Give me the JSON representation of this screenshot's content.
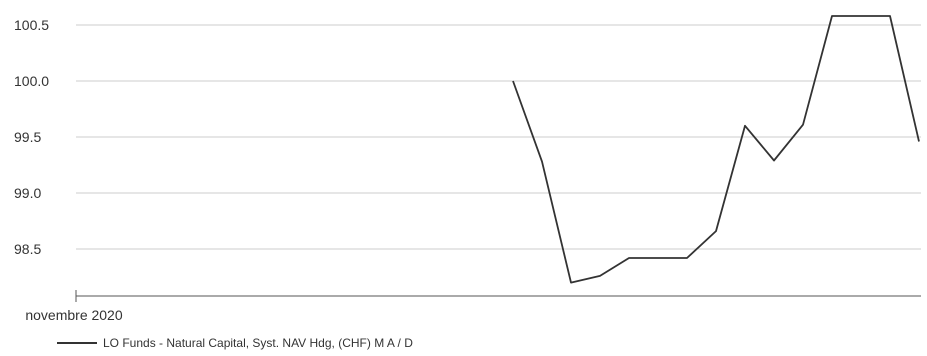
{
  "chart_data": {
    "type": "line",
    "title": "",
    "xlabel": "",
    "ylabel": "",
    "ylim": [
      98.1,
      100.7
    ],
    "y_ticks": [
      "100.5",
      "100.0",
      "99.5",
      "99.0",
      "98.5"
    ],
    "x_ticks": [
      "novembre 2020"
    ],
    "grid": true,
    "legend_position": "bottom-left",
    "series": [
      {
        "name": "LO Funds - Natural Capital, Syst. NAV Hdg, (CHF) M A / D",
        "color": "#333333",
        "values": [
          100.0,
          99.28,
          98.2,
          98.26,
          98.42,
          98.42,
          98.42,
          98.66,
          99.6,
          99.29,
          99.61,
          100.58,
          100.58,
          100.58,
          99.46
        ]
      }
    ]
  }
}
